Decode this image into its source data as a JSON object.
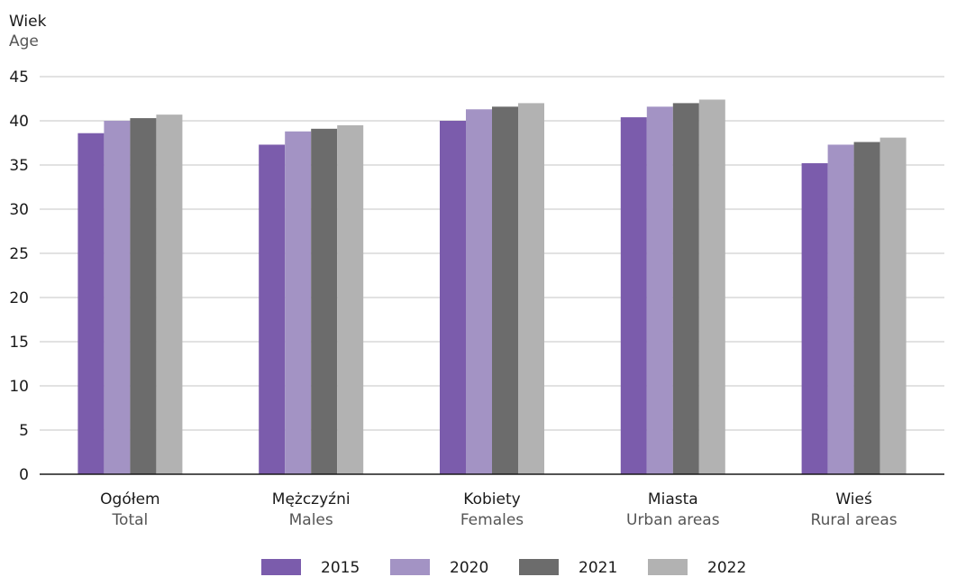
{
  "chart_data": {
    "type": "bar",
    "ylabel": "Wiek",
    "ylabel_en": "Age",
    "ylim": [
      0,
      45
    ],
    "yticks": [
      0,
      5,
      10,
      15,
      20,
      25,
      30,
      35,
      40,
      45
    ],
    "grid": true,
    "legend_position": "bottom",
    "categories": [
      {
        "pl": "Ogółem",
        "en": "Total"
      },
      {
        "pl": "Mężczyźni",
        "en": "Males"
      },
      {
        "pl": "Kobiety",
        "en": "Females"
      },
      {
        "pl": "Miasta",
        "en": "Urban areas"
      },
      {
        "pl": "Wieś",
        "en": "Rural areas"
      }
    ],
    "series": [
      {
        "name": "2015",
        "color": "#7b5cac",
        "values": [
          38.6,
          37.3,
          40.0,
          40.4,
          35.2
        ]
      },
      {
        "name": "2020",
        "color": "#a393c4",
        "values": [
          40.0,
          38.8,
          41.3,
          41.6,
          37.3
        ]
      },
      {
        "name": "2021",
        "color": "#6c6c6c",
        "values": [
          40.3,
          39.1,
          41.6,
          42.0,
          37.6
        ]
      },
      {
        "name": "2022",
        "color": "#b2b2b2",
        "values": [
          40.7,
          39.5,
          42.0,
          42.4,
          38.1
        ]
      }
    ]
  }
}
